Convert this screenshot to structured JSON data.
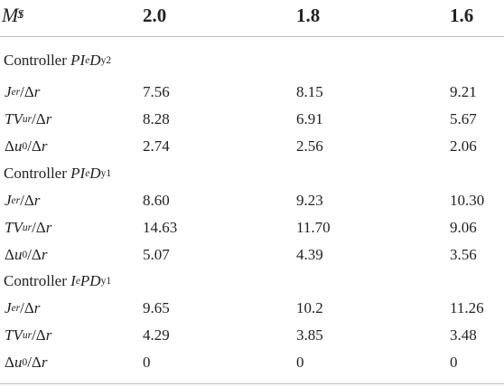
{
  "header": {
    "label": "M",
    "label_sup": "t",
    "label_sub": "S",
    "col1": "2.0",
    "col2": "1.8",
    "col3": "1.6"
  },
  "sections": [
    {
      "prefix": "Controller ",
      "name": "PI",
      "name_sub": "e",
      "name2": "D",
      "name2_sub": "y2",
      "rows": [
        {
          "metric": "Jer",
          "values": [
            "7.56",
            "8.15",
            "9.21"
          ]
        },
        {
          "metric": "TVur",
          "values": [
            "8.28",
            "6.91",
            "5.67"
          ]
        },
        {
          "metric": "du0",
          "values": [
            "2.74",
            "2.56",
            "2.06"
          ]
        }
      ]
    },
    {
      "prefix": "Controller ",
      "name": "PI",
      "name_sub": "e",
      "name2": "D",
      "name2_sub": "y1",
      "rows": [
        {
          "metric": "Jer",
          "values": [
            "8.60",
            "9.23",
            "10.30"
          ]
        },
        {
          "metric": "TVur",
          "values": [
            "14.63",
            "11.70",
            "9.06"
          ]
        },
        {
          "metric": "du0",
          "values": [
            "5.07",
            "4.39",
            "3.56"
          ]
        }
      ]
    },
    {
      "prefix": "Controller ",
      "name": "I",
      "name_sub": "e",
      "name2": "PD",
      "name2_sub": "y1",
      "rows": [
        {
          "metric": "Jer",
          "values": [
            "9.65",
            "10.2",
            "11.26"
          ]
        },
        {
          "metric": "TVur",
          "values": [
            "4.29",
            "3.85",
            "3.48"
          ]
        },
        {
          "metric": "du0",
          "values": [
            "0",
            "0",
            "0"
          ]
        }
      ]
    }
  ],
  "labels": {
    "jer": {
      "main": "J",
      "sub": "er",
      "tail": "/Δ",
      "r": "r"
    },
    "tvur": {
      "main": "TV",
      "sub": "ur",
      "tail": "/Δ",
      "r": "r"
    },
    "du0": {
      "delta": "Δ",
      "u": "u",
      "sub": "0",
      "tail": "/Δ",
      "r": "r"
    }
  }
}
